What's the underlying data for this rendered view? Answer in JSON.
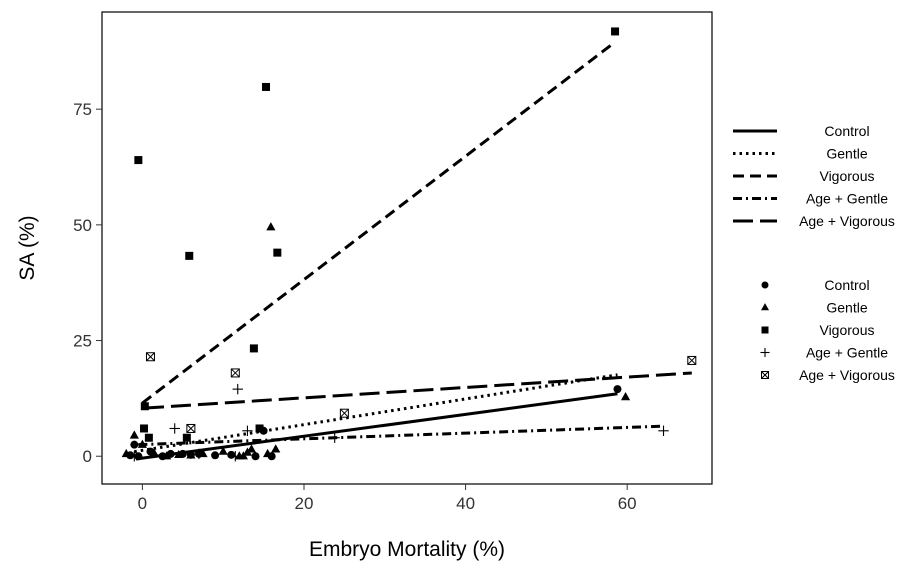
{
  "chart_data": {
    "type": "scatter",
    "title": "",
    "xlabel": "Embryo Mortality (%)",
    "ylabel": "SA (%)",
    "xlim": [
      -5,
      70.5
    ],
    "ylim": [
      -6,
      96
    ],
    "xticks": [
      0,
      20,
      40,
      60
    ],
    "yticks": [
      0,
      25,
      50,
      75
    ],
    "grid": false,
    "legend_position": "right",
    "line_legend": [
      "Control",
      "Gentle",
      "Vigorous",
      "Age + Gentle",
      "Age + Vigorous"
    ],
    "point_legend": [
      "Control",
      "Gentle",
      "Vigorous",
      "Age + Gentle",
      "Age + Vigorous"
    ],
    "series": [
      {
        "name": "Control",
        "marker": "circle",
        "line_style": "solid",
        "points": [
          [
            -1.5,
            0.2
          ],
          [
            -1,
            2.5
          ],
          [
            -0.5,
            0
          ],
          [
            1,
            1
          ],
          [
            2.5,
            0
          ],
          [
            3.5,
            0.5
          ],
          [
            5,
            0.5
          ],
          [
            6,
            0.3
          ],
          [
            7,
            0.5
          ],
          [
            9,
            0.2
          ],
          [
            11,
            0.3
          ],
          [
            14,
            0
          ],
          [
            15,
            5.5
          ],
          [
            16,
            0
          ],
          [
            58.8,
            14.5
          ]
        ],
        "fit_line": [
          [
            -0.8,
            -0.6
          ],
          [
            58.8,
            13.5
          ]
        ]
      },
      {
        "name": "Gentle",
        "marker": "triangle",
        "line_style": "dotted",
        "points": [
          [
            -2,
            0.5
          ],
          [
            -1,
            4.5
          ],
          [
            0,
            2.5
          ],
          [
            1.5,
            0.5
          ],
          [
            3,
            0
          ],
          [
            4.5,
            0.3
          ],
          [
            6,
            0.2
          ],
          [
            7.5,
            0.5
          ],
          [
            10,
            1
          ],
          [
            12,
            0
          ],
          [
            12.5,
            0
          ],
          [
            13,
            0.8
          ],
          [
            13.5,
            1.5
          ],
          [
            15.5,
            0.5
          ],
          [
            15.9,
            49.5
          ],
          [
            16.5,
            1.5
          ],
          [
            59.8,
            12.8
          ]
        ],
        "fit_line": [
          [
            -1,
            1
          ],
          [
            58.8,
            17.6
          ]
        ]
      },
      {
        "name": "Vigorous",
        "marker": "square",
        "line_style": "dashed",
        "points": [
          [
            -0.5,
            64
          ],
          [
            0.2,
            6
          ],
          [
            0.3,
            10.8
          ],
          [
            0.8,
            4
          ],
          [
            5.5,
            4
          ],
          [
            5.8,
            43.3
          ],
          [
            13.8,
            23.3
          ],
          [
            14.5,
            6
          ],
          [
            15.3,
            79.8
          ],
          [
            16.7,
            44
          ],
          [
            58.5,
            91.8
          ]
        ],
        "fit_line": [
          [
            0,
            11.5
          ],
          [
            58.5,
            89.5
          ]
        ]
      },
      {
        "name": "Age + Gentle",
        "marker": "plus",
        "line_style": "dash-dot",
        "points": [
          [
            -1,
            0
          ],
          [
            4,
            6
          ],
          [
            7,
            0.5
          ],
          [
            11.5,
            0
          ],
          [
            11.8,
            14.5
          ],
          [
            13,
            5.5
          ],
          [
            23.8,
            4
          ],
          [
            64.5,
            5.5
          ]
        ],
        "fit_line": [
          [
            -0.5,
            2.5
          ],
          [
            64.5,
            6.5
          ]
        ]
      },
      {
        "name": "Age + Vigorous",
        "marker": "square-x",
        "line_style": "long-dash",
        "points": [
          [
            1,
            21.5
          ],
          [
            6,
            6
          ],
          [
            11.5,
            18
          ],
          [
            25,
            9.3
          ],
          [
            68,
            20.7
          ]
        ],
        "fit_line": [
          [
            0.2,
            10.4
          ],
          [
            68,
            18
          ]
        ]
      }
    ]
  }
}
